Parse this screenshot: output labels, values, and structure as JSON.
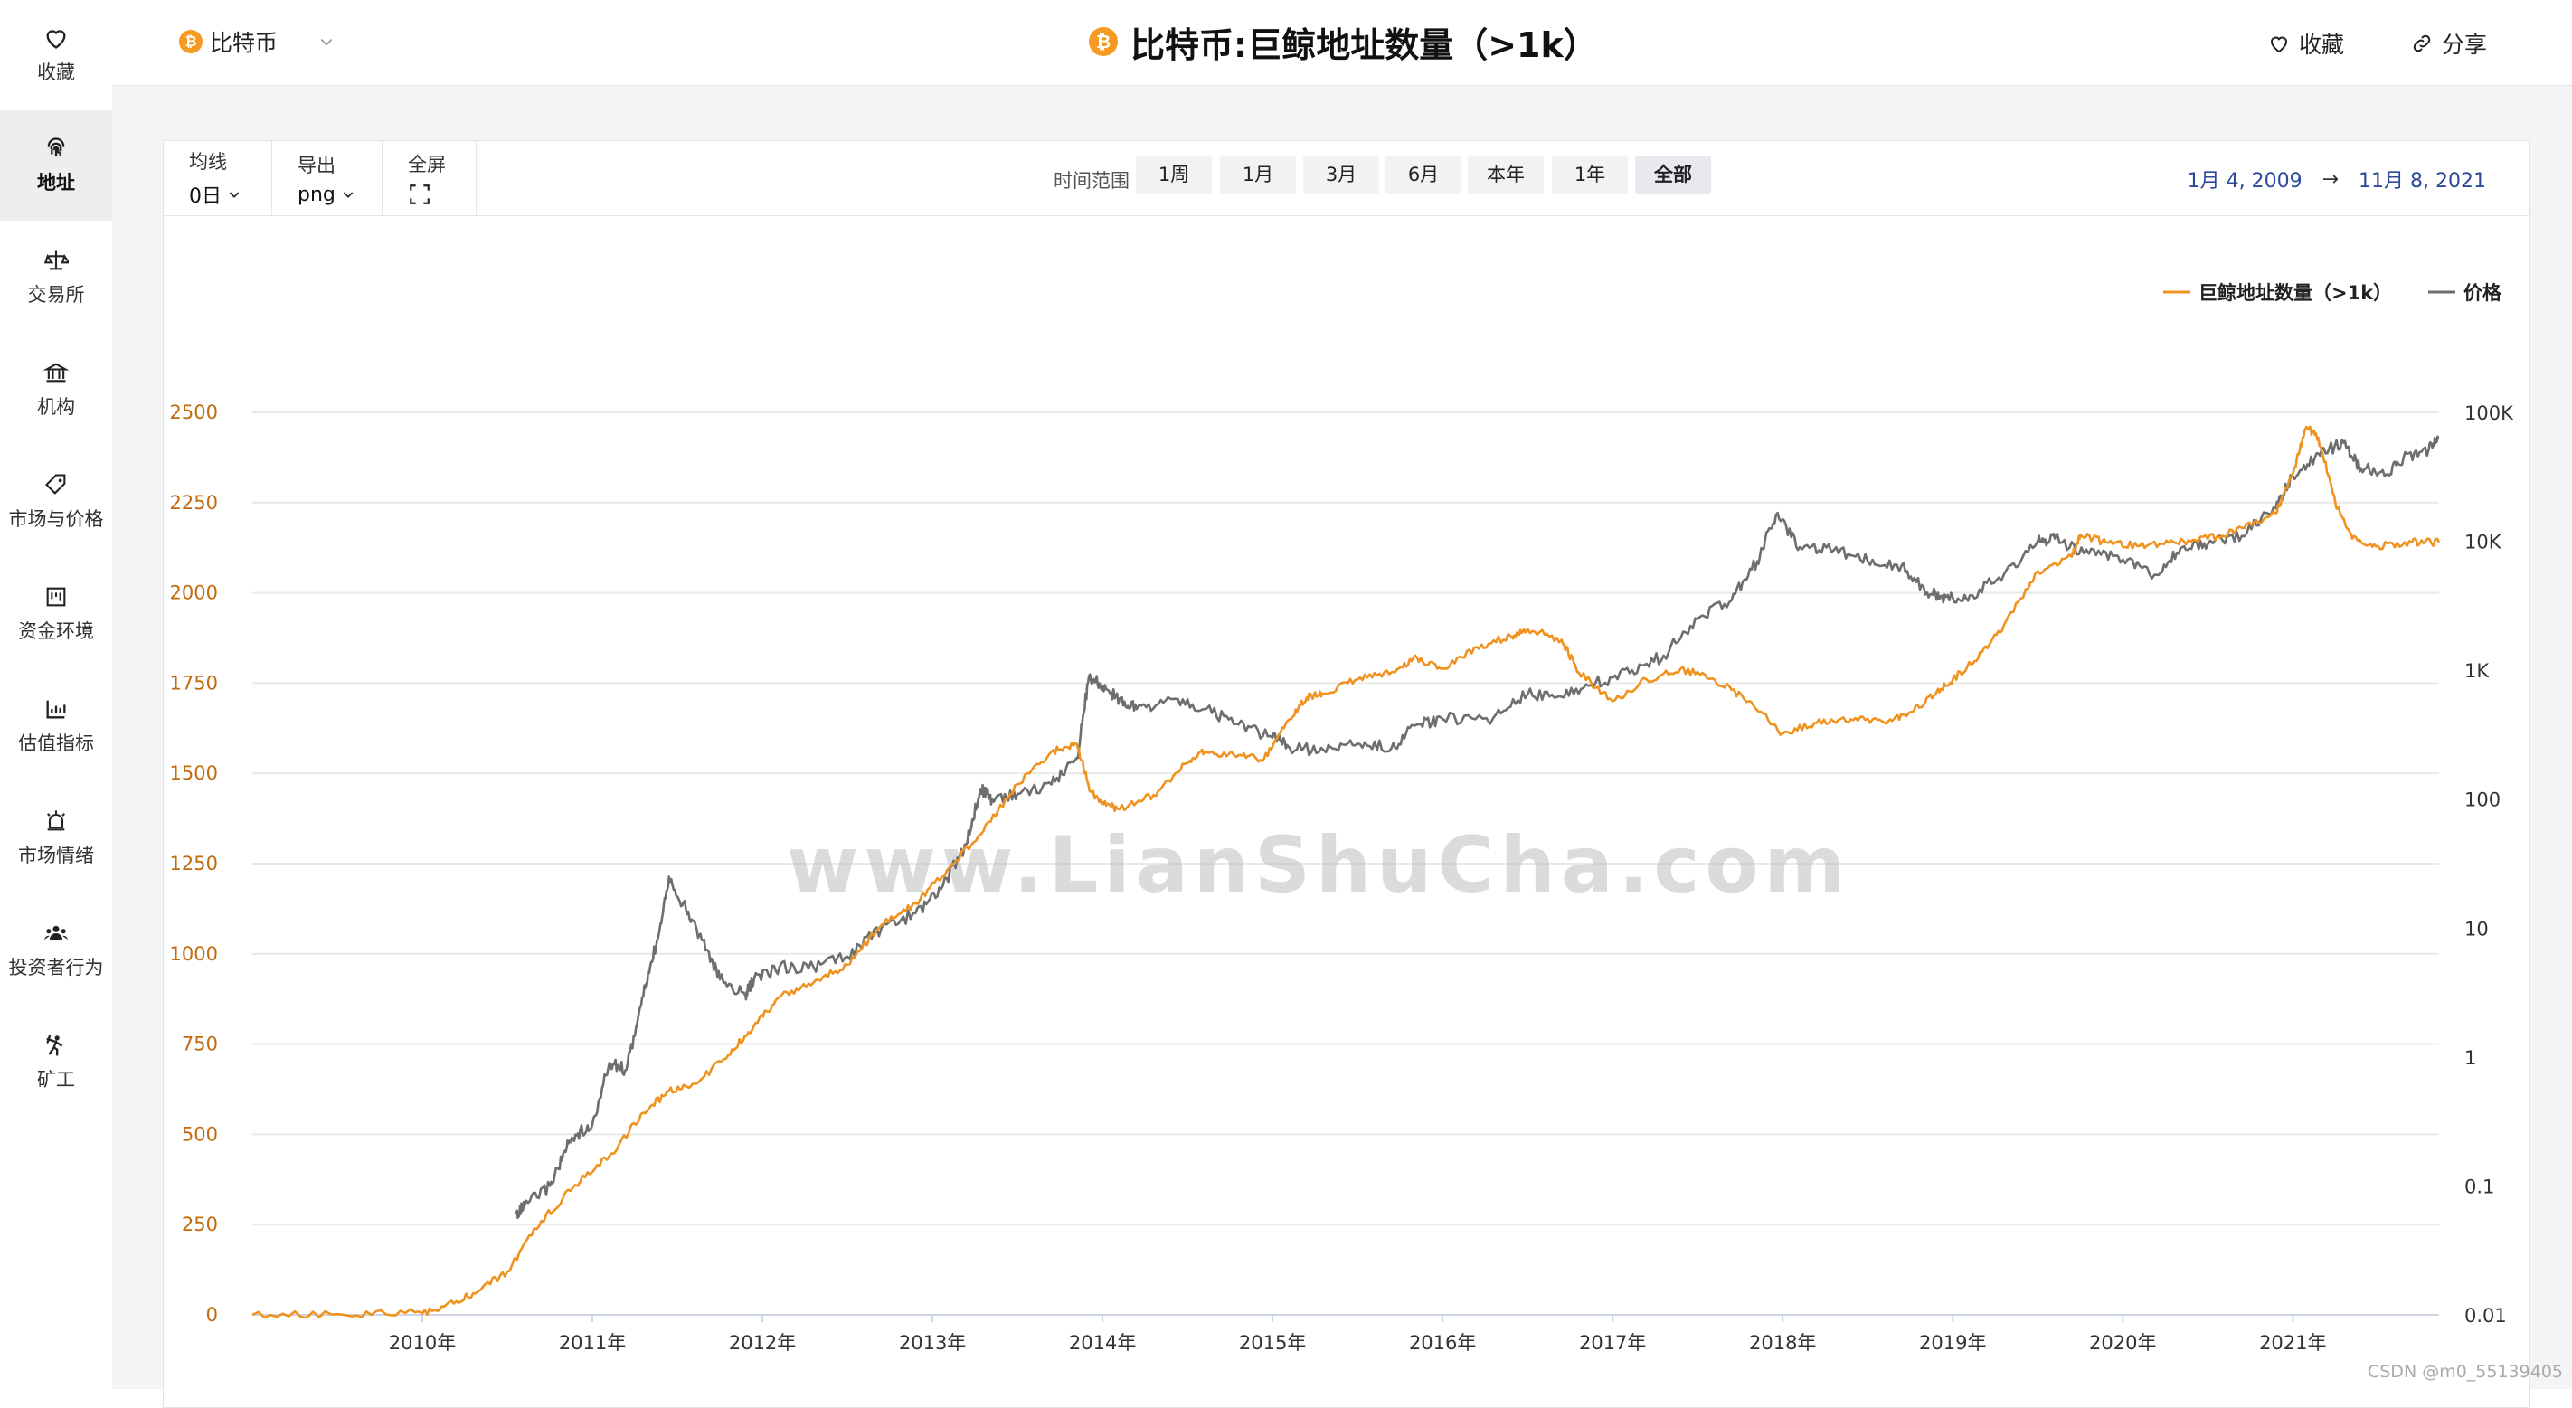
{
  "sidebar": {
    "items": [
      {
        "label": "收藏",
        "icon": "heart-icon",
        "active": false
      },
      {
        "label": "地址",
        "icon": "fingerprint-icon",
        "active": true
      },
      {
        "label": "交易所",
        "icon": "scale-icon",
        "active": false
      },
      {
        "label": "机构",
        "icon": "bank-icon",
        "active": false
      },
      {
        "label": "市场与价格",
        "icon": "tag-icon",
        "active": false
      },
      {
        "label": "资金环境",
        "icon": "chart-box-icon",
        "active": false
      },
      {
        "label": "估值指标",
        "icon": "bar-chart-icon",
        "active": false
      },
      {
        "label": "市场情绪",
        "icon": "alarm-icon",
        "active": false
      },
      {
        "label": "投资者行为",
        "icon": "users-icon",
        "active": false
      },
      {
        "label": "矿工",
        "icon": "miner-icon",
        "active": false
      }
    ]
  },
  "header": {
    "asset": "比特币",
    "coin_symbol": "₿",
    "title": "比特币:巨鲸地址数量（>1k）",
    "favorite_label": "收藏",
    "share_label": "分享"
  },
  "toolbar": {
    "ma_label": "均线",
    "ma_value": "0日",
    "export_label": "导出",
    "export_value": "png",
    "fullscreen_label": "全屏",
    "range_label": "时间范围",
    "ranges": [
      "1周",
      "1月",
      "3月",
      "6月",
      "本年",
      "1年",
      "全部"
    ],
    "active_range": "全部",
    "date_from": "1月 4, 2009",
    "date_arrow": "→",
    "date_to": "11月 8, 2021"
  },
  "colors": {
    "whales": "#f0921f",
    "price": "#6e6e6e",
    "accent": "#f59a23",
    "date_text": "#2b4a9a"
  },
  "chart_data": {
    "type": "line",
    "title": "比特币:巨鲸地址数量（>1k）",
    "x_ticks": [
      "2010年",
      "2011年",
      "2012年",
      "2013年",
      "2014年",
      "2015年",
      "2016年",
      "2017年",
      "2018年",
      "2019年",
      "2020年",
      "2021年"
    ],
    "x_range": [
      2009.0,
      2021.86
    ],
    "y_left_ticks": [
      0,
      250,
      500,
      750,
      1000,
      1250,
      1500,
      1750,
      2000,
      2250,
      2500
    ],
    "y_left_range": [
      0,
      2500
    ],
    "y_right_ticks": [
      "0.01",
      "0.1",
      "1",
      "10",
      "100",
      "1K",
      "10K",
      "100K"
    ],
    "y_right_range": [
      0.01,
      100000
    ],
    "y_right_scale": "log",
    "legend_position": "top-right",
    "grid": true,
    "series": [
      {
        "name": "巨鲸地址数量（>1k）",
        "axis": "left",
        "x": [
          2009.0,
          2009.5,
          2009.9,
          2010.1,
          2010.3,
          2010.5,
          2010.7,
          2010.9,
          2011.1,
          2011.3,
          2011.45,
          2011.6,
          2011.8,
          2011.95,
          2012.1,
          2012.3,
          2012.5,
          2012.7,
          2012.9,
          2013.1,
          2013.3,
          2013.5,
          2013.7,
          2013.85,
          2013.93,
          2014.0,
          2014.1,
          2014.3,
          2014.5,
          2014.6,
          2014.8,
          2014.95,
          2015.1,
          2015.2,
          2015.3,
          2015.5,
          2015.7,
          2015.85,
          2016.0,
          2016.2,
          2016.4,
          2016.5,
          2016.7,
          2016.8,
          2017.0,
          2017.2,
          2017.4,
          2017.6,
          2017.8,
          2018.0,
          2018.2,
          2018.4,
          2018.6,
          2018.75,
          2018.9,
          2019.0,
          2019.15,
          2019.3,
          2019.5,
          2019.7,
          2019.75,
          2019.9,
          2020.1,
          2020.3,
          2020.5,
          2020.7,
          2020.9,
          2021.0,
          2021.08,
          2021.15,
          2021.25,
          2021.35,
          2021.5,
          2021.7,
          2021.86
        ],
        "values": [
          0,
          2,
          5,
          12,
          60,
          120,
          260,
          360,
          440,
          560,
          620,
          640,
          720,
          800,
          880,
          920,
          970,
          1080,
          1140,
          1240,
          1340,
          1470,
          1560,
          1580,
          1450,
          1420,
          1400,
          1440,
          1530,
          1560,
          1550,
          1540,
          1650,
          1710,
          1720,
          1760,
          1780,
          1820,
          1790,
          1850,
          1880,
          1900,
          1870,
          1780,
          1700,
          1760,
          1790,
          1760,
          1700,
          1610,
          1640,
          1650,
          1640,
          1670,
          1720,
          1760,
          1820,
          1910,
          2060,
          2100,
          2160,
          2140,
          2130,
          2140,
          2150,
          2180,
          2220,
          2330,
          2460,
          2430,
          2250,
          2150,
          2130,
          2140,
          2140
        ]
      },
      {
        "name": "价格",
        "axis": "right",
        "x": [
          2010.55,
          2010.6,
          2010.75,
          2010.85,
          2010.9,
          2011.0,
          2011.1,
          2011.2,
          2011.3,
          2011.38,
          2011.45,
          2011.55,
          2011.65,
          2011.75,
          2011.9,
          2011.95,
          2012.1,
          2012.3,
          2012.5,
          2012.7,
          2012.9,
          2013.05,
          2013.2,
          2013.28,
          2013.35,
          2013.5,
          2013.7,
          2013.85,
          2013.92,
          2014.0,
          2014.1,
          2014.2,
          2014.4,
          2014.6,
          2014.8,
          2015.0,
          2015.1,
          2015.3,
          2015.5,
          2015.7,
          2015.85,
          2016.0,
          2016.3,
          2016.5,
          2016.7,
          2016.9,
          2017.1,
          2017.3,
          2017.5,
          2017.7,
          2017.85,
          2017.96,
          2018.1,
          2018.3,
          2018.5,
          2018.7,
          2018.85,
          2018.96,
          2019.1,
          2019.3,
          2019.5,
          2019.6,
          2019.8,
          2020.0,
          2020.2,
          2020.35,
          2020.5,
          2020.7,
          2020.9,
          2021.0,
          2021.15,
          2021.3,
          2021.4,
          2021.55,
          2021.65,
          2021.8,
          2021.86
        ],
        "values": [
          0.06,
          0.07,
          0.1,
          0.2,
          0.25,
          0.3,
          0.9,
          0.8,
          3,
          8,
          25,
          14,
          8,
          4,
          3,
          4,
          5,
          5,
          6,
          10,
          13,
          20,
          45,
          120,
          100,
          110,
          130,
          210,
          900,
          750,
          600,
          500,
          600,
          500,
          380,
          300,
          250,
          240,
          270,
          250,
          380,
          420,
          430,
          650,
          620,
          800,
          950,
          1300,
          2500,
          3500,
          7000,
          16000,
          9000,
          8500,
          7000,
          6500,
          4000,
          3700,
          3800,
          5500,
          10000,
          10500,
          8000,
          7200,
          5500,
          9000,
          9500,
          11000,
          18000,
          32000,
          48000,
          58000,
          37000,
          33000,
          44000,
          52000,
          64000
        ]
      }
    ]
  },
  "watermark": "www.LianShuCha.com",
  "credit": "CSDN @m0_55139405"
}
